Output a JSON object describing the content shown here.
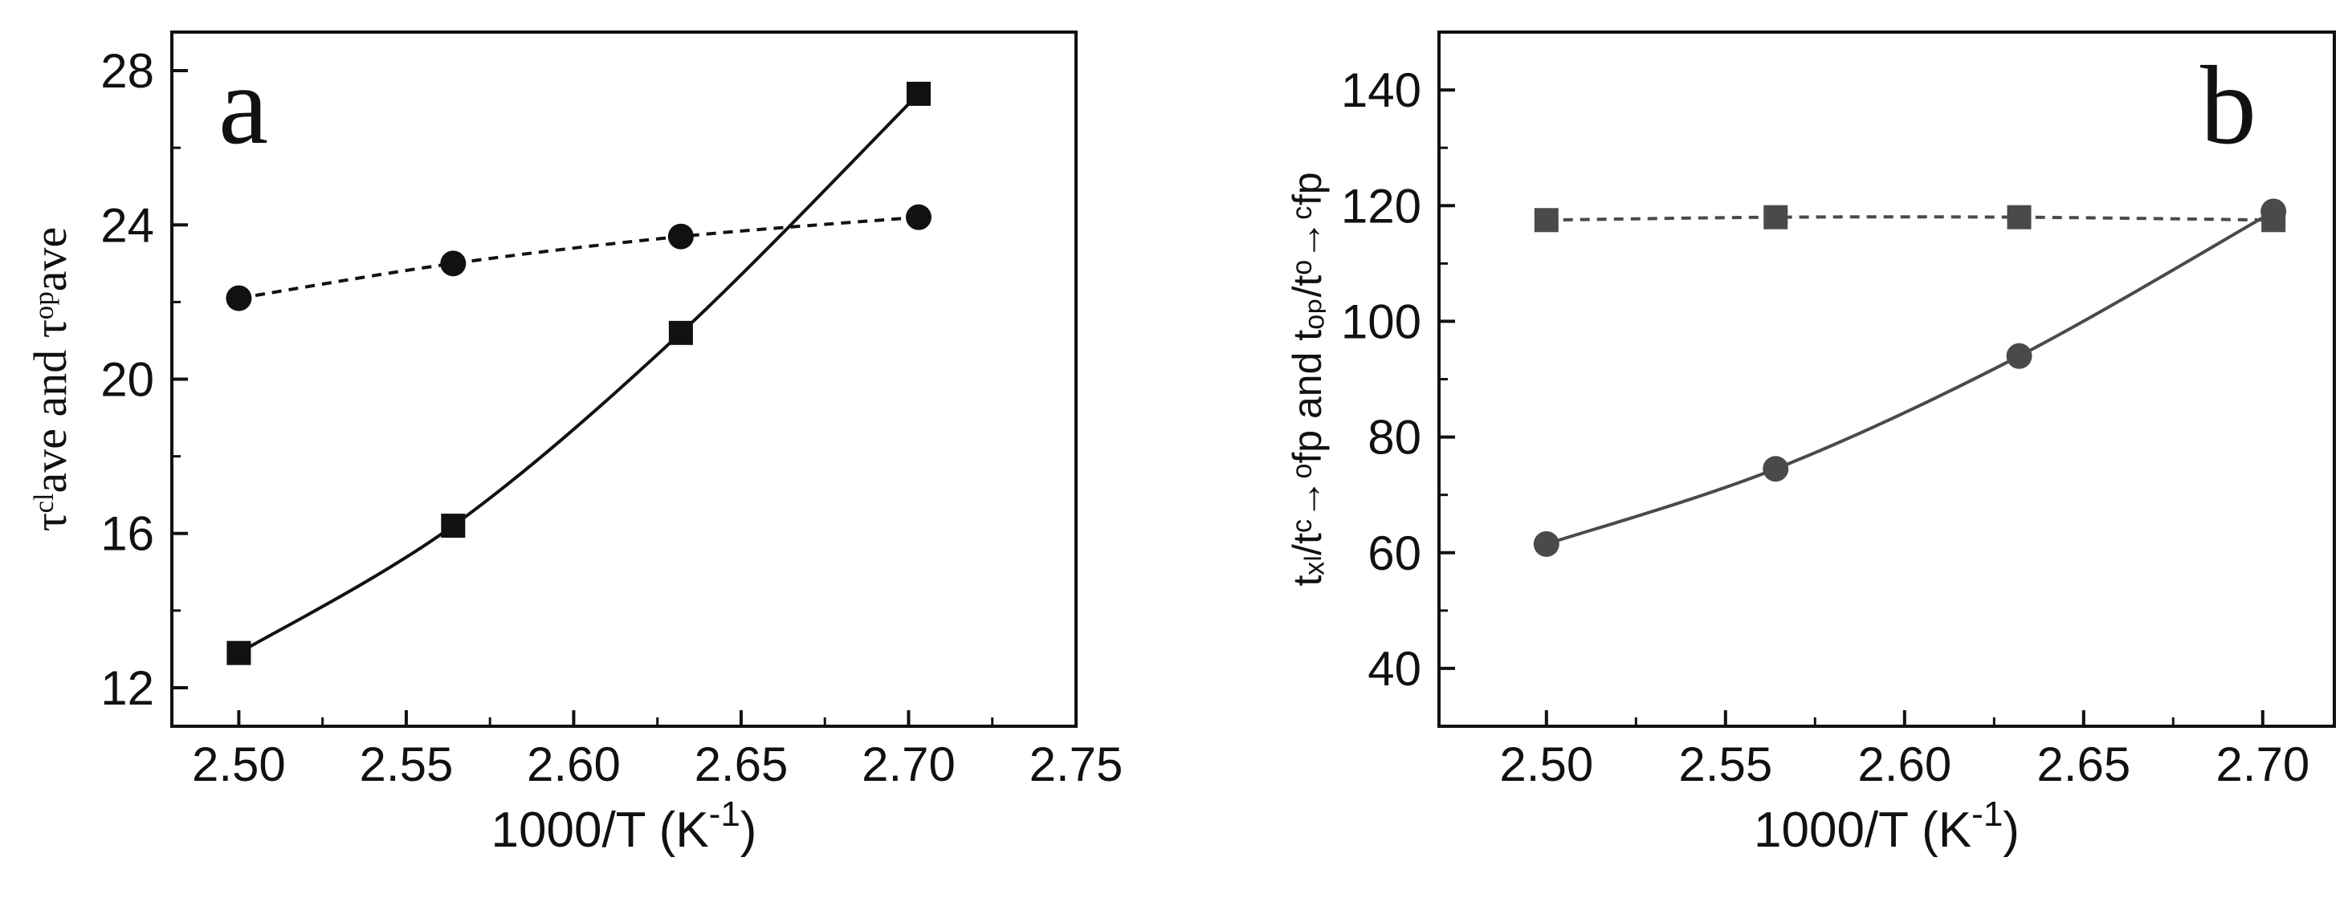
{
  "chart_data": [
    {
      "type": "line",
      "panel_label": "a",
      "xlabel": "1000/T (K",
      "xlabel_sup": "-1",
      "xlabel_close": ")",
      "ylabel": "τᶜˡave and τᵒᵖave",
      "xlim": [
        2.48,
        2.75
      ],
      "ylim": [
        11,
        29
      ],
      "xticks": [
        2.5,
        2.55,
        2.6,
        2.65,
        2.7,
        2.75
      ],
      "xtick_labels": [
        "2.50",
        "2.55",
        "2.60",
        "2.65",
        "2.70",
        "2.75"
      ],
      "yticks": [
        12,
        16,
        20,
        24,
        28
      ],
      "ytick_labels": [
        "12",
        "16",
        "20",
        "24",
        "28"
      ],
      "series": [
        {
          "name": "closed (squares)",
          "marker": "square",
          "line": "solid",
          "color": "#111111",
          "x": [
            2.5,
            2.564,
            2.632,
            2.703
          ],
          "y": [
            12.9,
            16.2,
            21.2,
            27.4
          ]
        },
        {
          "name": "open (circles)",
          "marker": "circle",
          "line": "dashed",
          "color": "#111111",
          "x": [
            2.5,
            2.564,
            2.632,
            2.703
          ],
          "y": [
            22.1,
            23.0,
            23.7,
            24.2
          ]
        }
      ]
    },
    {
      "type": "line",
      "panel_label": "b",
      "xlabel": "1000/T (K",
      "xlabel_sup": "-1",
      "xlabel_close": ")",
      "ylabel": "tₓₗ/tᶜ→ᵒfp and tₒₚ/tᵒ→ᶜfp",
      "xlim": [
        2.47,
        2.72
      ],
      "ylim": [
        30,
        150
      ],
      "xticks": [
        2.5,
        2.55,
        2.6,
        2.65,
        2.7
      ],
      "xtick_labels": [
        "2.50",
        "2.55",
        "2.60",
        "2.65",
        "2.70"
      ],
      "yticks": [
        40,
        60,
        80,
        100,
        120,
        140
      ],
      "ytick_labels": [
        "40",
        "60",
        "80",
        "100",
        "120",
        "140"
      ],
      "series": [
        {
          "name": "squares",
          "marker": "square",
          "line": "dashed",
          "color": "#4a4a4a",
          "x": [
            2.5,
            2.564,
            2.632,
            2.703
          ],
          "y": [
            117.5,
            118.0,
            118.0,
            117.5
          ]
        },
        {
          "name": "circles",
          "marker": "circle",
          "line": "solid",
          "color": "#4a4a4a",
          "x": [
            2.5,
            2.564,
            2.632,
            2.703
          ],
          "y": [
            61.5,
            74.5,
            94.0,
            119.0
          ]
        }
      ]
    }
  ]
}
